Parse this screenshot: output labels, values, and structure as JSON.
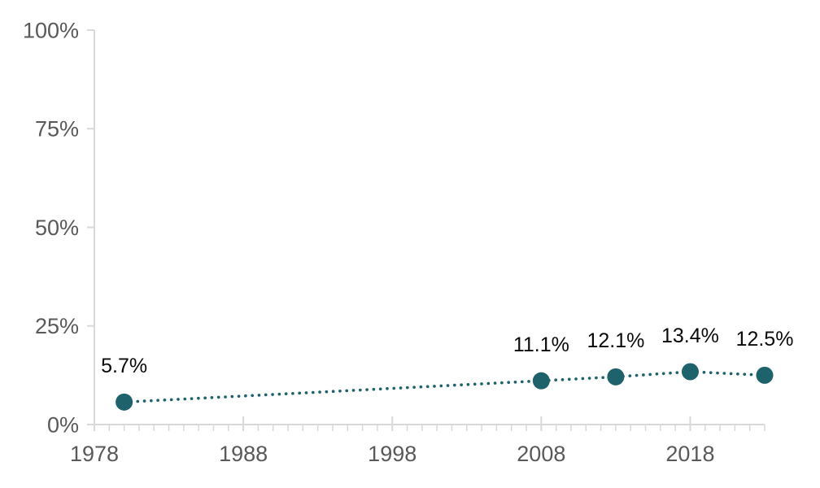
{
  "chart_data": {
    "type": "line",
    "title": "",
    "xlabel": "",
    "ylabel": "",
    "line_style": "dotted",
    "grid": false,
    "legend": "none",
    "xlim": [
      1978,
      2023
    ],
    "ylim": [
      0,
      100
    ],
    "series": [
      {
        "name": "percentage-trend",
        "points": [
          {
            "x": 1980,
            "y": 5.7,
            "label": "5.7%"
          },
          {
            "x": 2008,
            "y": 11.1,
            "label": "11.1%"
          },
          {
            "x": 2013,
            "y": 12.1,
            "label": "12.1%"
          },
          {
            "x": 2018,
            "y": 13.4,
            "label": "13.4%"
          },
          {
            "x": 2023,
            "y": 12.5,
            "label": "12.5%"
          }
        ]
      }
    ],
    "y_ticks": [
      {
        "value": 0,
        "label": "0%"
      },
      {
        "value": 25,
        "label": "25%"
      },
      {
        "value": 50,
        "label": "50%"
      },
      {
        "value": 75,
        "label": "75%"
      },
      {
        "value": 100,
        "label": "100%"
      }
    ],
    "x_major_ticks": [
      {
        "value": 1978,
        "label": "1978"
      },
      {
        "value": 1988,
        "label": "1988"
      },
      {
        "value": 1998,
        "label": "1998"
      },
      {
        "value": 2008,
        "label": "2008"
      },
      {
        "value": 2018,
        "label": "2018"
      }
    ],
    "x_minor_tick_step": 1,
    "colors": {
      "line": "#1E626B",
      "point": "#1E626B",
      "axis": "#D9D9D9",
      "axis_text": "#595959",
      "data_label": "#0A0A0A",
      "background": "#FFFFFF"
    }
  }
}
